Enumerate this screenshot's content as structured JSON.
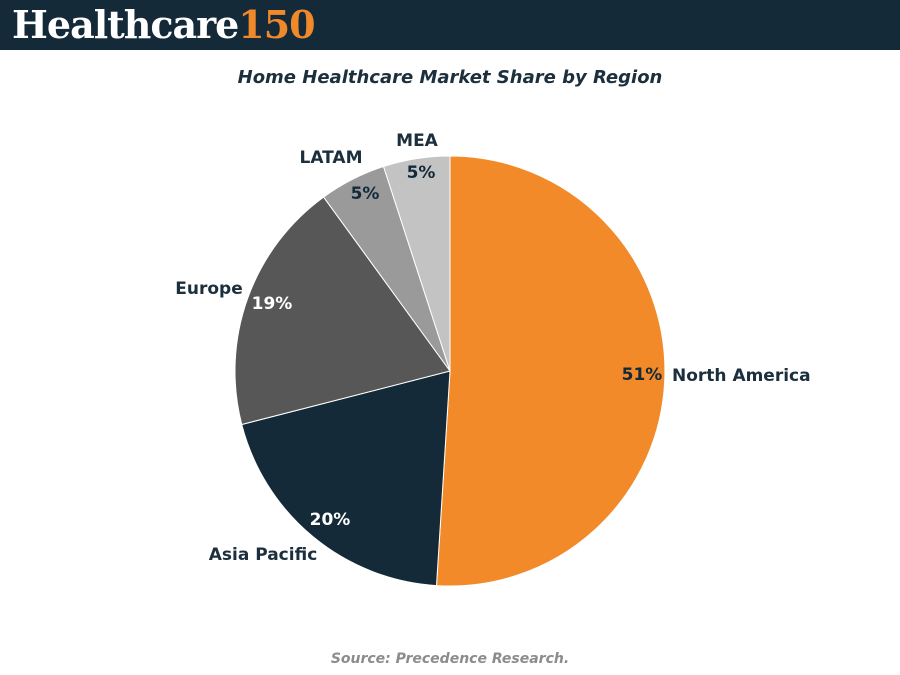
{
  "header": {
    "logo_word": "Healthcare",
    "logo_number": "150"
  },
  "chart_data": {
    "type": "pie",
    "title": "Home Healthcare Market Share by Region",
    "slices": [
      {
        "label": "North America",
        "value": 51,
        "value_label": "51%",
        "color": "#f28a2a",
        "label_color": "#142a39"
      },
      {
        "label": "Asia Pacific",
        "value": 20,
        "value_label": "20%",
        "color": "#142a39",
        "label_color": "#ffffff"
      },
      {
        "label": "Europe",
        "value": 19,
        "value_label": "19%",
        "color": "#575757",
        "label_color": "#ffffff"
      },
      {
        "label": "LATAM",
        "value": 5,
        "value_label": "5%",
        "color": "#9a9a9a",
        "label_color": "#142a39"
      },
      {
        "label": "MEA",
        "value": 5,
        "value_label": "5%",
        "color": "#c3c3c3",
        "label_color": "#142a39"
      }
    ],
    "start_angle": "12 o'clock",
    "direction": "clockwise",
    "legend": "none"
  },
  "footer": {
    "source": "Source: Precedence Research."
  }
}
